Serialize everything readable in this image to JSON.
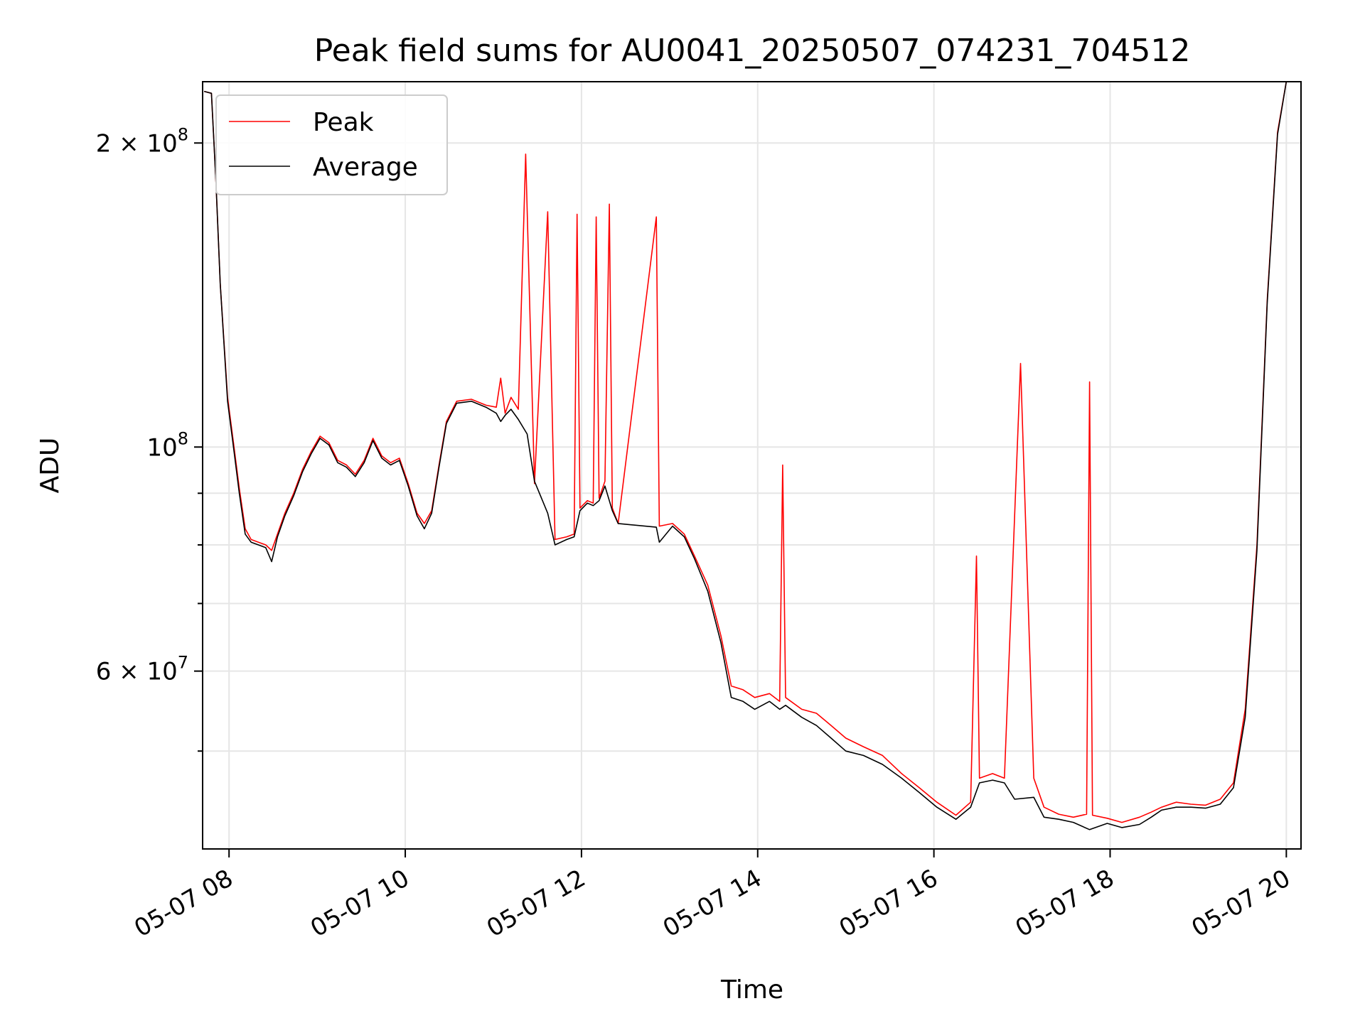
{
  "chart_data": {
    "type": "line",
    "title": "Peak field sums for AU0041_20250507_074231_704512",
    "xlabel": "Time",
    "ylabel": "ADU",
    "x_scale": "time",
    "y_scale": "log",
    "xlim": [
      "05-07 07:42",
      "05-07 20:10"
    ],
    "ylim": [
      40000000,
      230000000
    ],
    "xticks": [
      "05-07 08",
      "05-07 10",
      "05-07 12",
      "05-07 14",
      "05-07 16",
      "05-07 18",
      "05-07 20"
    ],
    "yticks_major": [
      {
        "base": "2",
        "exp": "8",
        "value": 200000000
      },
      {
        "base": "",
        "exp": "8",
        "value": 100000000
      },
      {
        "base": "6",
        "exp": "7",
        "value": 60000000
      }
    ],
    "yticks_minor": [
      50000000,
      70000000,
      80000000,
      90000000
    ],
    "grid": true,
    "legend_position": "top-left",
    "series": [
      {
        "name": "Peak",
        "color": "#ff0000",
        "points": [
          [
            "05-07 07:43",
            225000000
          ],
          [
            "05-07 07:48",
            224000000
          ],
          [
            "05-07 07:51",
            184000000
          ],
          [
            "05-07 07:54",
            145000000
          ],
          [
            "05-07 07:59",
            112000000
          ],
          [
            "05-07 08:03",
            101000000
          ],
          [
            "05-07 08:07",
            91000000
          ],
          [
            "05-07 08:11",
            83000000
          ],
          [
            "05-07 08:15",
            81000000
          ],
          [
            "05-07 08:20",
            80500000
          ],
          [
            "05-07 08:25",
            80000000
          ],
          [
            "05-07 08:29",
            79000000
          ],
          [
            "05-07 08:33",
            82000000
          ],
          [
            "05-07 08:38",
            86000000
          ],
          [
            "05-07 08:44",
            90000000
          ],
          [
            "05-07 08:50",
            95000000
          ],
          [
            "05-07 08:56",
            99000000
          ],
          [
            "05-07 09:02",
            102500000
          ],
          [
            "05-07 09:08",
            101000000
          ],
          [
            "05-07 09:14",
            97000000
          ],
          [
            "05-07 09:20",
            96000000
          ],
          [
            "05-07 09:26",
            94000000
          ],
          [
            "05-07 09:32",
            97000000
          ],
          [
            "05-07 09:38",
            102000000
          ],
          [
            "05-07 09:44",
            98000000
          ],
          [
            "05-07 09:50",
            96500000
          ],
          [
            "05-07 09:56",
            97500000
          ],
          [
            "05-07 10:02",
            92000000
          ],
          [
            "05-07 10:08",
            86000000
          ],
          [
            "05-07 10:13",
            84000000
          ],
          [
            "05-07 10:18",
            86500000
          ],
          [
            "05-07 10:23",
            96000000
          ],
          [
            "05-07 10:28",
            106000000
          ],
          [
            "05-07 10:35",
            111000000
          ],
          [
            "05-07 10:45",
            111500000
          ],
          [
            "05-07 10:55",
            110000000
          ],
          [
            "05-07 11:02",
            109500000
          ],
          [
            "05-07 11:05",
            117000000
          ],
          [
            "05-07 11:08",
            108000000
          ],
          [
            "05-07 11:12",
            112000000
          ],
          [
            "05-07 11:17",
            109000000
          ],
          [
            "05-07 11:22",
            195000000
          ],
          [
            "05-07 11:28",
            92000000
          ],
          [
            "05-07 11:37",
            171000000
          ],
          [
            "05-07 11:42",
            81000000
          ],
          [
            "05-07 11:50",
            81500000
          ],
          [
            "05-07 11:55",
            82000000
          ],
          [
            "05-07 11:57",
            170000000
          ],
          [
            "05-07 11:59",
            87000000
          ],
          [
            "05-07 12:04",
            88500000
          ],
          [
            "05-07 12:08",
            88000000
          ],
          [
            "05-07 12:10",
            169000000
          ],
          [
            "05-07 12:12",
            89000000
          ],
          [
            "05-07 12:16",
            92500000
          ],
          [
            "05-07 12:19",
            174000000
          ],
          [
            "05-07 12:21",
            87000000
          ],
          [
            "05-07 12:25",
            84000000
          ],
          [
            "05-07 12:51",
            169000000
          ],
          [
            "05-07 12:53",
            83500000
          ],
          [
            "05-07 13:02",
            84000000
          ],
          [
            "05-07 13:10",
            82000000
          ],
          [
            "05-07 13:17",
            78000000
          ],
          [
            "05-07 13:26",
            73000000
          ],
          [
            "05-07 13:35",
            65000000
          ],
          [
            "05-07 13:42",
            58000000
          ],
          [
            "05-07 13:50",
            57500000
          ],
          [
            "05-07 13:58",
            56500000
          ],
          [
            "05-07 14:08",
            57000000
          ],
          [
            "05-07 14:15",
            56000000
          ],
          [
            "05-07 14:17",
            96000000
          ],
          [
            "05-07 14:19",
            56500000
          ],
          [
            "05-07 14:30",
            55000000
          ],
          [
            "05-07 14:40",
            54500000
          ],
          [
            "05-07 14:50",
            53000000
          ],
          [
            "05-07 15:00",
            51500000
          ],
          [
            "05-07 15:12",
            50500000
          ],
          [
            "05-07 15:25",
            49500000
          ],
          [
            "05-07 15:38",
            47500000
          ],
          [
            "05-07 15:50",
            46000000
          ],
          [
            "05-07 16:02",
            44500000
          ],
          [
            "05-07 16:15",
            43200000
          ],
          [
            "05-07 16:25",
            44500000
          ],
          [
            "05-07 16:29",
            78000000
          ],
          [
            "05-07 16:31",
            47000000
          ],
          [
            "05-07 16:40",
            47500000
          ],
          [
            "05-07 16:48",
            47000000
          ],
          [
            "05-07 16:59",
            121000000
          ],
          [
            "05-07 17:08",
            47000000
          ],
          [
            "05-07 17:15",
            44000000
          ],
          [
            "05-07 17:25",
            43300000
          ],
          [
            "05-07 17:35",
            43000000
          ],
          [
            "05-07 17:44",
            43300000
          ],
          [
            "05-07 17:46",
            116000000
          ],
          [
            "05-07 17:48",
            43200000
          ],
          [
            "05-07 17:58",
            42900000
          ],
          [
            "05-07 18:08",
            42500000
          ],
          [
            "05-07 18:20",
            43000000
          ],
          [
            "05-07 18:28",
            43500000
          ],
          [
            "05-07 18:35",
            44000000
          ],
          [
            "05-07 18:45",
            44500000
          ],
          [
            "05-07 18:55",
            44300000
          ],
          [
            "05-07 19:05",
            44200000
          ],
          [
            "05-07 19:15",
            44800000
          ],
          [
            "05-07 19:24",
            46500000
          ],
          [
            "05-07 19:32",
            55000000
          ],
          [
            "05-07 19:40",
            80000000
          ],
          [
            "05-07 19:47",
            140000000
          ],
          [
            "05-07 19:54",
            205000000
          ],
          [
            "05-07 20:00",
            230000000
          ]
        ]
      },
      {
        "name": "Average",
        "color": "#000000",
        "points": [
          [
            "05-07 07:43",
            225000000
          ],
          [
            "05-07 07:48",
            224000000
          ],
          [
            "05-07 07:51",
            184000000
          ],
          [
            "05-07 07:54",
            145000000
          ],
          [
            "05-07 07:59",
            111000000
          ],
          [
            "05-07 08:03",
            100000000
          ],
          [
            "05-07 08:07",
            90000000
          ],
          [
            "05-07 08:11",
            82000000
          ],
          [
            "05-07 08:15",
            80500000
          ],
          [
            "05-07 08:20",
            80000000
          ],
          [
            "05-07 08:25",
            79500000
          ],
          [
            "05-07 08:29",
            77000000
          ],
          [
            "05-07 08:33",
            81500000
          ],
          [
            "05-07 08:38",
            85500000
          ],
          [
            "05-07 08:44",
            89500000
          ],
          [
            "05-07 08:50",
            94500000
          ],
          [
            "05-07 08:56",
            98500000
          ],
          [
            "05-07 09:02",
            102000000
          ],
          [
            "05-07 09:08",
            100500000
          ],
          [
            "05-07 09:14",
            96500000
          ],
          [
            "05-07 09:20",
            95500000
          ],
          [
            "05-07 09:26",
            93500000
          ],
          [
            "05-07 09:32",
            96500000
          ],
          [
            "05-07 09:38",
            101500000
          ],
          [
            "05-07 09:44",
            97500000
          ],
          [
            "05-07 09:50",
            96000000
          ],
          [
            "05-07 09:56",
            97000000
          ],
          [
            "05-07 10:02",
            91500000
          ],
          [
            "05-07 10:08",
            85500000
          ],
          [
            "05-07 10:13",
            83000000
          ],
          [
            "05-07 10:18",
            86000000
          ],
          [
            "05-07 10:23",
            95500000
          ],
          [
            "05-07 10:28",
            105500000
          ],
          [
            "05-07 10:35",
            110500000
          ],
          [
            "05-07 10:45",
            111000000
          ],
          [
            "05-07 10:55",
            109500000
          ],
          [
            "05-07 11:02",
            108000000
          ],
          [
            "05-07 11:05",
            106000000
          ],
          [
            "05-07 11:08",
            107500000
          ],
          [
            "05-07 11:12",
            109000000
          ],
          [
            "05-07 11:17",
            106500000
          ],
          [
            "05-07 11:23",
            103000000
          ],
          [
            "05-07 11:28",
            92500000
          ],
          [
            "05-07 11:37",
            86000000
          ],
          [
            "05-07 11:42",
            80000000
          ],
          [
            "05-07 11:50",
            81000000
          ],
          [
            "05-07 11:55",
            81500000
          ],
          [
            "05-07 11:59",
            86500000
          ],
          [
            "05-07 12:04",
            88000000
          ],
          [
            "05-07 12:08",
            87500000
          ],
          [
            "05-07 12:12",
            88500000
          ],
          [
            "05-07 12:16",
            91500000
          ],
          [
            "05-07 12:21",
            86500000
          ],
          [
            "05-07 12:25",
            84000000
          ],
          [
            "05-07 12:51",
            83300000
          ],
          [
            "05-07 12:53",
            80500000
          ],
          [
            "05-07 13:02",
            83500000
          ],
          [
            "05-07 13:10",
            81500000
          ],
          [
            "05-07 13:17",
            77500000
          ],
          [
            "05-07 13:26",
            72000000
          ],
          [
            "05-07 13:35",
            64000000
          ],
          [
            "05-07 13:42",
            56500000
          ],
          [
            "05-07 13:50",
            56000000
          ],
          [
            "05-07 13:58",
            55000000
          ],
          [
            "05-07 14:08",
            56000000
          ],
          [
            "05-07 14:15",
            55000000
          ],
          [
            "05-07 14:19",
            55500000
          ],
          [
            "05-07 14:30",
            54000000
          ],
          [
            "05-07 14:40",
            53000000
          ],
          [
            "05-07 14:50",
            51500000
          ],
          [
            "05-07 15:00",
            50000000
          ],
          [
            "05-07 15:12",
            49500000
          ],
          [
            "05-07 15:25",
            48500000
          ],
          [
            "05-07 15:38",
            47000000
          ],
          [
            "05-07 15:50",
            45500000
          ],
          [
            "05-07 16:02",
            44000000
          ],
          [
            "05-07 16:15",
            42800000
          ],
          [
            "05-07 16:25",
            44000000
          ],
          [
            "05-07 16:31",
            46500000
          ],
          [
            "05-07 16:40",
            46800000
          ],
          [
            "05-07 16:48",
            46500000
          ],
          [
            "05-07 16:55",
            44800000
          ],
          [
            "05-07 17:08",
            45000000
          ],
          [
            "05-07 17:15",
            43000000
          ],
          [
            "05-07 17:25",
            42800000
          ],
          [
            "05-07 17:35",
            42500000
          ],
          [
            "05-07 17:46",
            41800000
          ],
          [
            "05-07 17:58",
            42400000
          ],
          [
            "05-07 18:08",
            42000000
          ],
          [
            "05-07 18:20",
            42300000
          ],
          [
            "05-07 18:28",
            43000000
          ],
          [
            "05-07 18:35",
            43700000
          ],
          [
            "05-07 18:45",
            44000000
          ],
          [
            "05-07 18:55",
            44000000
          ],
          [
            "05-07 19:05",
            43900000
          ],
          [
            "05-07 19:15",
            44300000
          ],
          [
            "05-07 19:24",
            46000000
          ],
          [
            "05-07 19:32",
            54000000
          ],
          [
            "05-07 19:40",
            79000000
          ],
          [
            "05-07 19:47",
            139000000
          ],
          [
            "05-07 19:54",
            204000000
          ],
          [
            "05-07 20:00",
            230000000
          ]
        ]
      }
    ]
  }
}
